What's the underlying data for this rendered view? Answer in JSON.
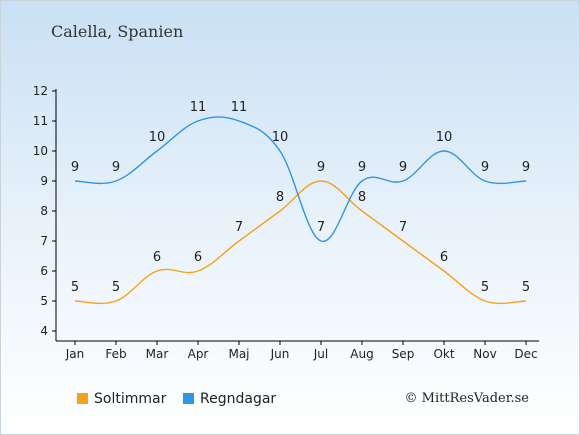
{
  "header": {
    "title": "Calella, Spanien"
  },
  "credit": "© MittResVader.se",
  "chart_data": {
    "type": "line",
    "categories": [
      "Jan",
      "Feb",
      "Mar",
      "Apr",
      "Maj",
      "Jun",
      "Jul",
      "Aug",
      "Sep",
      "Okt",
      "Nov",
      "Dec"
    ],
    "yticks": [
      4,
      5,
      6,
      7,
      8,
      9,
      10,
      11,
      12
    ],
    "ylim": [
      4,
      12
    ],
    "grid": false,
    "legend_position": "bottom-left",
    "series": [
      {
        "name": "Soltimmar",
        "color": "#f7a21b",
        "values": [
          5,
          5,
          6,
          6,
          7,
          8,
          9,
          8,
          7,
          6,
          5,
          5
        ]
      },
      {
        "name": "Regndagar",
        "color": "#2e96e8",
        "values": [
          9,
          9,
          10,
          11,
          11,
          10,
          7,
          9,
          9,
          10,
          9,
          9
        ]
      }
    ]
  }
}
